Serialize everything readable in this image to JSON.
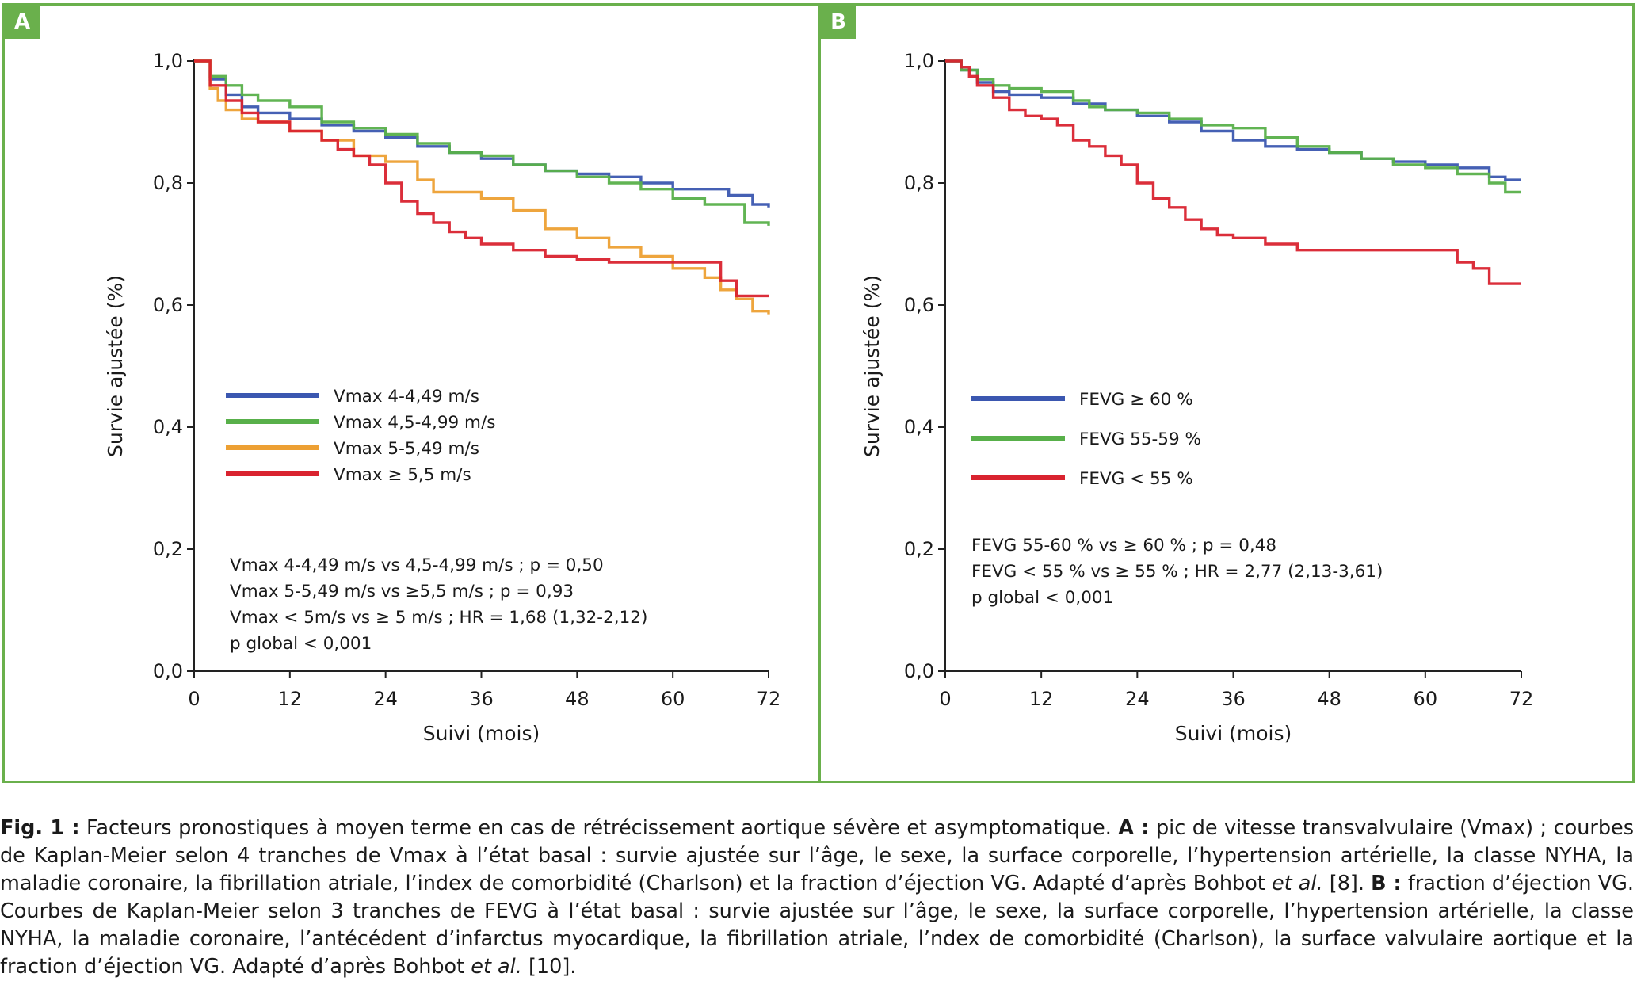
{
  "colors": {
    "panel_border": "#6ab04c",
    "blue": "#3b57b0",
    "green": "#58b04a",
    "orange": "#eda033",
    "red": "#d9232f"
  },
  "chart_data": [
    {
      "panel_label": "A",
      "type": "line",
      "step": true,
      "ylabel": "Survie ajustée (%)",
      "xlabel": "Suivi (mois)",
      "xlim": [
        0,
        72
      ],
      "ylim": [
        0,
        1
      ],
      "xticks": [
        "0",
        "12",
        "24",
        "36",
        "48",
        "60",
        "72"
      ],
      "yticks": [
        "0,0",
        "0,2",
        "0,4",
        "0,6",
        "0,8",
        "1,0"
      ],
      "grid": false,
      "legend_position": "center-left",
      "series": [
        {
          "name": "Vmax 4-4,49 m/s",
          "color": "#3b57b0",
          "x": [
            0,
            2,
            4,
            6,
            8,
            12,
            16,
            20,
            24,
            28,
            32,
            36,
            40,
            44,
            48,
            52,
            56,
            60,
            64,
            67,
            70,
            72
          ],
          "y": [
            1.0,
            0.97,
            0.945,
            0.925,
            0.915,
            0.905,
            0.895,
            0.885,
            0.875,
            0.86,
            0.85,
            0.84,
            0.83,
            0.82,
            0.815,
            0.81,
            0.8,
            0.79,
            0.79,
            0.78,
            0.765,
            0.76
          ]
        },
        {
          "name": "Vmax 4,5-4,99 m/s",
          "color": "#58b04a",
          "x": [
            0,
            2,
            4,
            6,
            8,
            12,
            16,
            20,
            24,
            28,
            32,
            36,
            40,
            44,
            48,
            52,
            56,
            60,
            64,
            67,
            69,
            72
          ],
          "y": [
            1.0,
            0.975,
            0.96,
            0.945,
            0.935,
            0.925,
            0.9,
            0.89,
            0.88,
            0.865,
            0.85,
            0.845,
            0.83,
            0.82,
            0.81,
            0.8,
            0.79,
            0.775,
            0.765,
            0.765,
            0.735,
            0.73
          ]
        },
        {
          "name": "Vmax 5-5,49 m/s",
          "color": "#eda033",
          "x": [
            0,
            2,
            3,
            4,
            6,
            8,
            12,
            16,
            20,
            24,
            28,
            30,
            36,
            40,
            44,
            48,
            52,
            56,
            60,
            64,
            66,
            68,
            70,
            72
          ],
          "y": [
            1.0,
            0.955,
            0.935,
            0.92,
            0.905,
            0.9,
            0.885,
            0.87,
            0.845,
            0.835,
            0.805,
            0.785,
            0.775,
            0.755,
            0.725,
            0.71,
            0.695,
            0.68,
            0.66,
            0.645,
            0.625,
            0.61,
            0.59,
            0.585
          ]
        },
        {
          "name": "Vmax ≥ 5,5 m/s",
          "color": "#d9232f",
          "x": [
            0,
            2,
            4,
            6,
            8,
            12,
            16,
            18,
            20,
            22,
            24,
            26,
            28,
            30,
            32,
            34,
            36,
            40,
            44,
            48,
            52,
            56,
            60,
            62,
            64,
            66,
            68,
            70,
            72
          ],
          "y": [
            1.0,
            0.96,
            0.935,
            0.915,
            0.9,
            0.885,
            0.87,
            0.855,
            0.845,
            0.83,
            0.8,
            0.77,
            0.75,
            0.735,
            0.72,
            0.71,
            0.7,
            0.69,
            0.68,
            0.675,
            0.67,
            0.67,
            0.67,
            0.67,
            0.67,
            0.64,
            0.615,
            0.615,
            0.615
          ]
        }
      ],
      "stats": [
        "Vmax 4-4,49 m/s vs 4,5-4,99 m/s ; p = 0,50",
        "Vmax 5-5,49 m/s vs ≥5,5 m/s ; p = 0,93",
        "Vmax < 5m/s vs ≥ 5 m/s ; HR = 1,68 (1,32-2,12)",
        "p global < 0,001"
      ]
    },
    {
      "panel_label": "B",
      "type": "line",
      "step": true,
      "ylabel": "Survie ajustée (%)",
      "xlabel": "Suivi (mois)",
      "xlim": [
        0,
        72
      ],
      "ylim": [
        0,
        1
      ],
      "xticks": [
        "0",
        "12",
        "24",
        "36",
        "48",
        "60",
        "72"
      ],
      "yticks": [
        "0,0",
        "0,2",
        "0,4",
        "0,6",
        "0,8",
        "1,0"
      ],
      "grid": false,
      "legend_position": "center-left",
      "series": [
        {
          "name": "FEVG ≥ 60 %",
          "color": "#3b57b0",
          "x": [
            0,
            2,
            4,
            6,
            8,
            12,
            16,
            20,
            24,
            28,
            32,
            36,
            40,
            44,
            48,
            52,
            56,
            60,
            64,
            68,
            70,
            72
          ],
          "y": [
            1.0,
            0.985,
            0.965,
            0.95,
            0.945,
            0.94,
            0.93,
            0.92,
            0.91,
            0.9,
            0.885,
            0.87,
            0.86,
            0.855,
            0.85,
            0.84,
            0.835,
            0.83,
            0.825,
            0.81,
            0.805,
            0.805
          ]
        },
        {
          "name": "FEVG 55-59 %",
          "color": "#58b04a",
          "x": [
            0,
            2,
            4,
            6,
            8,
            12,
            16,
            18,
            20,
            24,
            28,
            32,
            36,
            40,
            44,
            48,
            52,
            56,
            60,
            64,
            68,
            70,
            72
          ],
          "y": [
            1.0,
            0.985,
            0.97,
            0.96,
            0.955,
            0.95,
            0.935,
            0.925,
            0.92,
            0.915,
            0.905,
            0.895,
            0.89,
            0.875,
            0.86,
            0.85,
            0.84,
            0.83,
            0.825,
            0.815,
            0.8,
            0.785,
            0.785
          ]
        },
        {
          "name": "FEVG < 55 %",
          "color": "#d9232f",
          "x": [
            0,
            2,
            3,
            4,
            6,
            8,
            10,
            12,
            14,
            16,
            18,
            20,
            22,
            24,
            26,
            28,
            30,
            32,
            34,
            36,
            40,
            44,
            48,
            52,
            56,
            60,
            62,
            64,
            66,
            68,
            72
          ],
          "y": [
            1.0,
            0.99,
            0.975,
            0.96,
            0.94,
            0.92,
            0.91,
            0.905,
            0.895,
            0.87,
            0.86,
            0.845,
            0.83,
            0.8,
            0.775,
            0.76,
            0.74,
            0.725,
            0.715,
            0.71,
            0.7,
            0.69,
            0.69,
            0.69,
            0.69,
            0.69,
            0.69,
            0.67,
            0.66,
            0.635,
            0.635
          ]
        }
      ],
      "stats": [
        "FEVG 55-60 % vs ≥ 60 % ; p = 0,48",
        "FEVG < 55 % vs ≥ 55 % ; HR = 2,77 (2,13-3,61)",
        "p global < 0,001"
      ]
    }
  ],
  "caption": {
    "fig_label": "Fig. 1 :",
    "intro": " Facteurs pronostiques à moyen terme en cas de rétrécissement aortique sévère et asymptomatique. ",
    "a_label": "A :",
    "a_text": " pic de vitesse transvalvulaire (Vmax) ; courbes de Kaplan-Meier selon 4 tranches de Vmax à l’état basal : survie ajustée sur l’âge, le sexe, la surface corporelle, l’hypertension artérielle, la classe NYHA, la maladie coronaire, la fibrillation atriale, l’index de comorbidité (Charlson) et la fraction d’éjection VG. Adapté d’après Bohbot ",
    "a_etal": "et al.",
    "a_ref": " [8]. ",
    "b_label": "B :",
    "b_text": " fraction d’éjection VG. Courbes de Kaplan-Meier selon 3 tranches de FEVG à l’état basal : survie ajustée sur l’âge, le sexe, la surface corporelle, l’hypertension artérielle, la classe NYHA, la maladie coronaire, l’antécédent d’infarctus myocardique, la fibrillation atriale, l’ndex de comorbidité (Charlson), la surface valvulaire aortique et la fraction d’éjection VG. Adapté d’après Bohbot ",
    "b_etal": "et al.",
    "b_ref": " [10]."
  }
}
